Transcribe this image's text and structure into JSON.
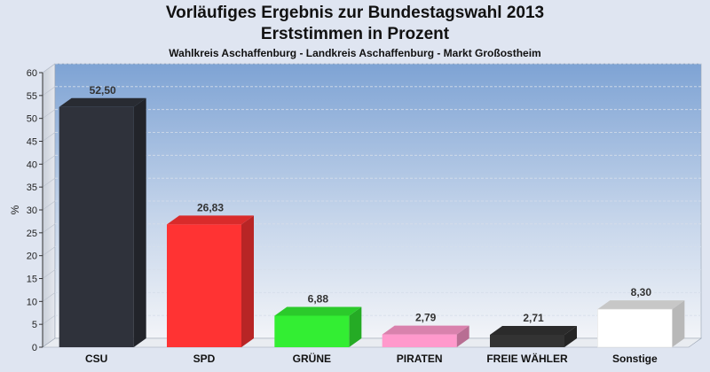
{
  "chart_data": {
    "type": "bar",
    "title": "Vorläufiges Ergebnis zur Bundestagswahl 2013",
    "title2": "Erststimmen in Prozent",
    "subtitle": "Wahlkreis Aschaffenburg - Landkreis Aschaffenburg - Markt Großostheim",
    "ylabel": "%",
    "xlabel": "",
    "ylim": [
      0,
      60
    ],
    "yticks": [
      "0",
      "5",
      "10",
      "15",
      "20",
      "25",
      "30",
      "35",
      "40",
      "45",
      "50",
      "55",
      "60"
    ],
    "categories": [
      "CSU",
      "SPD",
      "GRÜNE",
      "PIRATEN",
      "FREIE WÄHLER",
      "Sonstige"
    ],
    "values": [
      52.5,
      26.83,
      6.88,
      2.79,
      2.71,
      8.3
    ],
    "value_labels": [
      "52,50",
      "26,83",
      "6,88",
      "2,79",
      "2,71",
      "8,30"
    ],
    "colors": [
      "#2f323b",
      "#ff3333",
      "#33ee33",
      "#ff99cc",
      "#333333",
      "#ffffff"
    ],
    "grid": true,
    "legend": "none"
  }
}
